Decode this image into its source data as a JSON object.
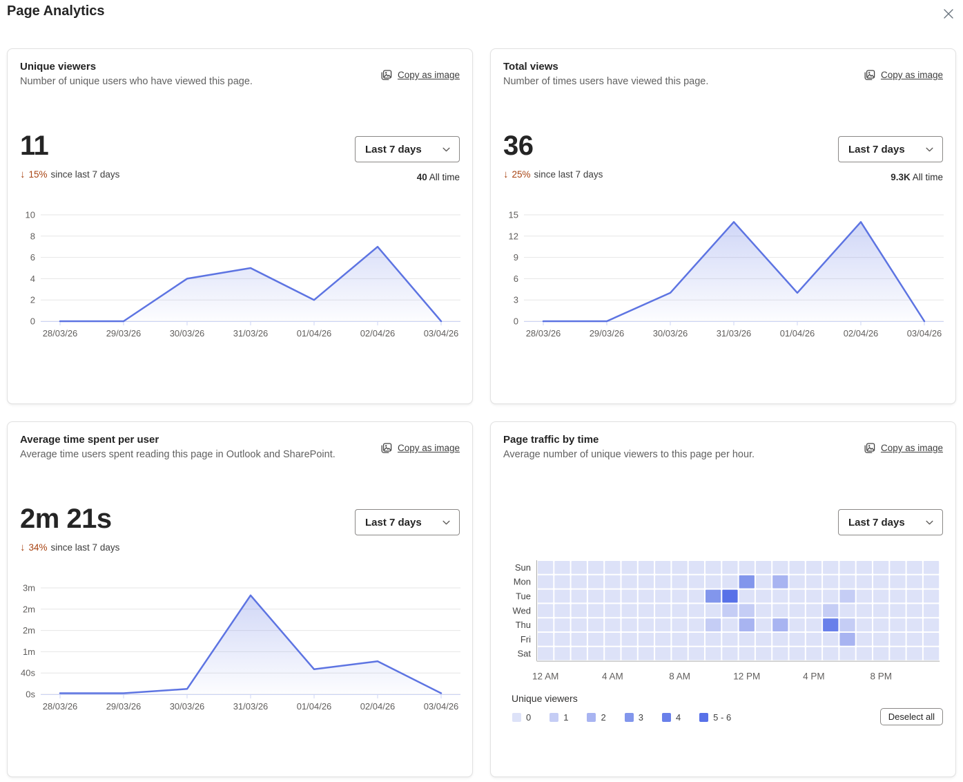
{
  "page": {
    "title": "Page Analytics"
  },
  "colors": {
    "accent_line": "#5d74e2",
    "area_fill": "#7b8ee8",
    "axis_label": "#605e5c",
    "gridline": "#e6e6e6",
    "baseline": "#ccd4f5",
    "delta_negative": "#a84312",
    "heatmap_levels": [
      "#dde2f8",
      "#c5cdf5",
      "#a8b4f1",
      "#8296ec",
      "#6980ea",
      "#5871e8"
    ]
  },
  "cards": [
    {
      "title": "Unique viewers",
      "description": "Number of unique users who have viewed this page.",
      "copy_as_image_label": "Copy as image",
      "value": "11",
      "delta_arrow": "↓",
      "delta_percent": "15%",
      "delta_text": "since last 7 days",
      "range_selector": "Last 7 days",
      "all_time_value": "40",
      "all_time_label": "All time"
    },
    {
      "title": "Total views",
      "description": "Number of times users have viewed this page.",
      "copy_as_image_label": "Copy as image",
      "value": "36",
      "delta_arrow": "↓",
      "delta_percent": "25%",
      "delta_text": "since last 7 days",
      "range_selector": "Last 7 days",
      "all_time_value": "9.3K",
      "all_time_label": "All time"
    },
    {
      "title": "Average time spent per user",
      "description": "Average time users spent reading this page in Outlook and SharePoint.",
      "copy_as_image_label": "Copy as image",
      "value": "2m 21s",
      "delta_arrow": "↓",
      "delta_percent": "34%",
      "delta_text": "since last 7 days",
      "range_selector": "Last 7 days"
    },
    {
      "title": "Page traffic by time",
      "description": "Average number of unique viewers to this page per hour.",
      "copy_as_image_label": "Copy as image",
      "range_selector": "Last 7 days",
      "legend_title": "Unique viewers",
      "deselect_all_label": "Deselect all"
    }
  ],
  "chart_data": [
    {
      "type": "area",
      "title": "Unique viewers",
      "categories": [
        "28/03/26",
        "29/03/26",
        "30/03/26",
        "31/03/26",
        "01/04/26",
        "02/04/26",
        "03/04/26"
      ],
      "values": [
        0,
        0,
        4,
        5,
        2,
        7,
        0
      ],
      "ylim": [
        0,
        10
      ],
      "yticks": [
        0,
        2,
        4,
        6,
        8,
        10
      ],
      "grid": true,
      "legend": "none"
    },
    {
      "type": "area",
      "title": "Total views",
      "categories": [
        "28/03/26",
        "29/03/26",
        "30/03/26",
        "31/03/26",
        "01/04/26",
        "02/04/26",
        "03/04/26"
      ],
      "values": [
        0,
        0,
        4,
        14,
        4,
        14,
        0
      ],
      "ylim": [
        0,
        15
      ],
      "yticks": [
        0,
        3,
        6,
        9,
        12,
        15
      ],
      "grid": true,
      "legend": "none"
    },
    {
      "type": "area",
      "title": "Average time spent per user",
      "categories": [
        "28/03/26",
        "29/03/26",
        "30/03/26",
        "31/03/26",
        "01/04/26",
        "02/04/26",
        "03/04/26"
      ],
      "values": [
        2,
        2,
        10,
        186,
        47,
        62,
        2
      ],
      "unit": "seconds",
      "ylim": [
        0,
        200
      ],
      "yticks": [
        0,
        40,
        80,
        120,
        160,
        200
      ],
      "ytick_labels": [
        "0s",
        "40s",
        "1m",
        "2m",
        "2m",
        "3m"
      ],
      "grid": true,
      "legend": "none"
    },
    {
      "type": "heatmap",
      "title": "Page traffic by time",
      "rows": [
        "Sun",
        "Mon",
        "Tue",
        "Wed",
        "Thu",
        "Fri",
        "Sat"
      ],
      "cols": 24,
      "xtick_labels": [
        "12 AM",
        "4 AM",
        "8 AM",
        "12 PM",
        "4 PM",
        "8 PM"
      ],
      "xtick_cols": [
        0,
        4,
        8,
        12,
        16,
        20
      ],
      "default_value": 0,
      "cells": [
        {
          "row": "Mon",
          "col": 12,
          "value": 3
        },
        {
          "row": "Mon",
          "col": 14,
          "value": 2
        },
        {
          "row": "Tue",
          "col": 10,
          "value": 3
        },
        {
          "row": "Tue",
          "col": 11,
          "value": 5
        },
        {
          "row": "Tue",
          "col": 18,
          "value": 1
        },
        {
          "row": "Wed",
          "col": 11,
          "value": 1
        },
        {
          "row": "Wed",
          "col": 12,
          "value": 1
        },
        {
          "row": "Wed",
          "col": 17,
          "value": 1
        },
        {
          "row": "Thu",
          "col": 10,
          "value": 1
        },
        {
          "row": "Thu",
          "col": 12,
          "value": 2
        },
        {
          "row": "Thu",
          "col": 14,
          "value": 2
        },
        {
          "row": "Thu",
          "col": 17,
          "value": 4
        },
        {
          "row": "Thu",
          "col": 18,
          "value": 1
        },
        {
          "row": "Fri",
          "col": 18,
          "value": 2
        }
      ],
      "legend": {
        "title": "Unique viewers",
        "buckets": [
          "0",
          "1",
          "2",
          "3",
          "4",
          "5 - 6"
        ]
      }
    }
  ]
}
